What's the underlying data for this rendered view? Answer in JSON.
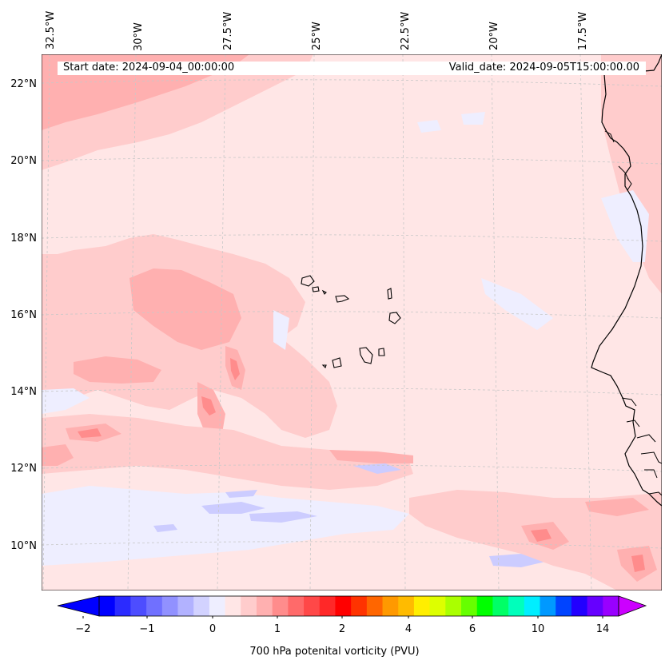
{
  "info": {
    "start_date": "Start date: 2024-09-04_00:00:00",
    "valid_date": "Valid_date: 2024-09-05T15:00:00.00"
  },
  "map": {
    "lon_labels": [
      "32.5°W",
      "30°W",
      "27.5°W",
      "25°W",
      "22.5°W",
      "20°W",
      "17.5°W"
    ],
    "lat_labels": [
      "22°N",
      "20°N",
      "18°N",
      "16°N",
      "14°N",
      "12°N",
      "10°N"
    ],
    "colors": {
      "background": "#ffe6e6",
      "light_red": "#ffcccc",
      "medium_red": "#ffb0b0",
      "deep_red": "#ff8c8c",
      "pale_blue": "#eeeeff",
      "light_blue": "#ccccff",
      "coastline": "#000000",
      "gridline": "#c8c8c8"
    }
  },
  "colorbar": {
    "tick_labels": [
      "−2",
      "−1",
      "0",
      "1",
      "2",
      "4",
      "6",
      "10",
      "14"
    ],
    "label": "700 hPa potenital vorticity (PVU)",
    "colors": [
      "#0000ff",
      "#2b2bff",
      "#4d4dff",
      "#7070ff",
      "#9191ff",
      "#b2b2ff",
      "#d2d2ff",
      "#eeeeff",
      "#ffe6e6",
      "#ffcccc",
      "#ffb0b0",
      "#ff8c8c",
      "#ff6a6a",
      "#ff4848",
      "#ff2828",
      "#ff0000",
      "#ff3300",
      "#ff6600",
      "#ff9900",
      "#ffbb00",
      "#ffee00",
      "#ddff00",
      "#aaff00",
      "#66ff00",
      "#00ff00",
      "#00ff66",
      "#00ffbb",
      "#00eeff",
      "#0099ff",
      "#0044ff",
      "#2200ff",
      "#6600ff",
      "#9900ff"
    ],
    "extend_low_color": "#0000ff",
    "extend_high_color": "#cc00ff"
  }
}
